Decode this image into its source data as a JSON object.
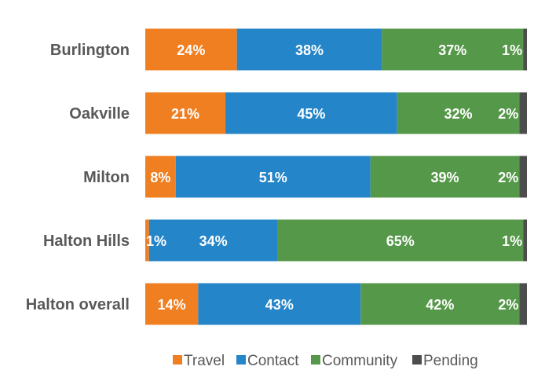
{
  "chart_data": {
    "type": "bar",
    "orientation": "horizontal",
    "stacked": true,
    "categories": [
      "Burlington",
      "Oakville",
      "Milton",
      "Halton Hills",
      "Halton overall"
    ],
    "series": [
      {
        "name": "Travel",
        "color": "#F07F22",
        "values": [
          24,
          21,
          8,
          1,
          14
        ],
        "labels": [
          "24%",
          "21%",
          "8%",
          "1%",
          "14%"
        ]
      },
      {
        "name": "Contact",
        "color": "#2485C8",
        "values": [
          38,
          45,
          51,
          34,
          43
        ],
        "labels": [
          "38%",
          "45%",
          "51%",
          "34%",
          "43%"
        ]
      },
      {
        "name": "Community",
        "color": "#559849",
        "values": [
          37,
          32,
          39,
          65,
          42
        ],
        "labels": [
          "37%",
          "32%",
          "39%",
          "65%",
          "42%"
        ]
      },
      {
        "name": "Pending",
        "color": "#4D4D4D",
        "values": [
          1,
          2,
          2,
          1,
          2
        ],
        "labels": [
          "1%",
          "2%",
          "2%",
          "1%",
          "2%"
        ]
      }
    ],
    "legend_position": "bottom",
    "grid": false
  }
}
